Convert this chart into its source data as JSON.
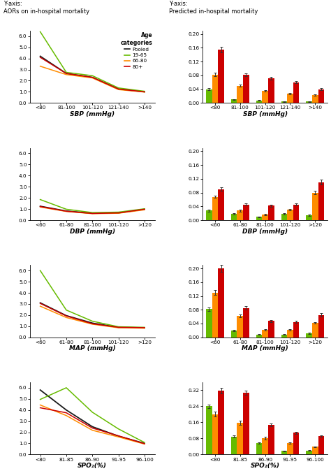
{
  "title_left": "Y-axis:\nAORs on in-hospital mortality",
  "title_right": "Y-axis:\nPredicted in-hospital mortality",
  "legend_title": "Age\ncategories",
  "legend_items": [
    "Pooled",
    "19-65",
    "66-80",
    "80+"
  ],
  "line_colors": [
    "#1a1a1a",
    "#66bb00",
    "#ff8c00",
    "#cc0000"
  ],
  "bar_colors": [
    "#66bb00",
    "#ff8c00",
    "#cc0000"
  ],
  "bar_labels": [
    "19-65",
    "66-80",
    "80+"
  ],
  "sbp": {
    "xlabel": "SBP (mmHg)",
    "xticks": [
      "<80",
      "81-100",
      "101-120",
      "121-140",
      ">140"
    ],
    "line_ylim": [
      0.0,
      6.5
    ],
    "line_yticks": [
      0.0,
      1.0,
      2.0,
      3.0,
      4.0,
      5.0,
      6.0
    ],
    "bar_ylim": [
      0.0,
      0.21
    ],
    "bar_yticks": [
      0.0,
      0.04,
      0.08,
      0.12,
      0.16,
      0.2
    ],
    "lines": {
      "Pooled": [
        4.2,
        2.65,
        2.3,
        1.25,
        1.0
      ],
      "19-65": [
        6.4,
        2.75,
        2.45,
        1.35,
        1.05
      ],
      "66-80": [
        3.3,
        2.55,
        2.25,
        1.2,
        0.98
      ],
      "80+": [
        4.1,
        2.65,
        2.3,
        1.25,
        1.0
      ]
    },
    "bars": {
      "19-65": [
        0.04,
        0.01,
        0.007,
        0.004,
        0.004
      ],
      "66-80": [
        0.082,
        0.05,
        0.036,
        0.027,
        0.022
      ],
      "80+": [
        0.155,
        0.082,
        0.072,
        0.06,
        0.04
      ]
    },
    "bar_errors": {
      "19-65": [
        0.003,
        0.001,
        0.001,
        0.001,
        0.001
      ],
      "66-80": [
        0.005,
        0.003,
        0.002,
        0.002,
        0.002
      ],
      "80+": [
        0.008,
        0.004,
        0.004,
        0.003,
        0.003
      ]
    }
  },
  "dbp": {
    "xlabel": "DBP (mmHg)",
    "xticks": [
      "<60",
      "61-80",
      "81-100",
      "101-120",
      ">120"
    ],
    "line_ylim": [
      0.0,
      6.5
    ],
    "line_yticks": [
      0.0,
      1.0,
      2.0,
      3.0,
      4.0,
      5.0,
      6.0
    ],
    "bar_ylim": [
      0.0,
      0.21
    ],
    "bar_yticks": [
      0.0,
      0.04,
      0.08,
      0.12,
      0.16,
      0.2
    ],
    "lines": {
      "Pooled": [
        1.25,
        0.82,
        0.62,
        0.65,
        0.98
      ],
      "19-65": [
        1.85,
        0.98,
        0.68,
        0.72,
        1.02
      ],
      "66-80": [
        1.18,
        0.78,
        0.58,
        0.62,
        0.93
      ],
      "80+": [
        1.22,
        0.8,
        0.6,
        0.65,
        0.98
      ]
    },
    "bars": {
      "19-65": [
        0.028,
        0.018,
        0.01,
        0.018,
        0.015
      ],
      "66-80": [
        0.068,
        0.028,
        0.016,
        0.03,
        0.08
      ],
      "80+": [
        0.09,
        0.045,
        0.042,
        0.045,
        0.11
      ]
    },
    "bar_errors": {
      "19-65": [
        0.003,
        0.002,
        0.001,
        0.002,
        0.002
      ],
      "66-80": [
        0.004,
        0.003,
        0.002,
        0.002,
        0.005
      ],
      "80+": [
        0.005,
        0.003,
        0.003,
        0.003,
        0.007
      ]
    }
  },
  "map": {
    "xlabel": "MAP (mmHg)",
    "xticks": [
      "<60",
      "61-80",
      "81-100",
      "101-120",
      ">120"
    ],
    "line_ylim": [
      0.0,
      6.5
    ],
    "line_yticks": [
      0.0,
      1.0,
      2.0,
      3.0,
      4.0,
      5.0,
      6.0
    ],
    "bar_ylim": [
      0.0,
      0.21
    ],
    "bar_yticks": [
      0.0,
      0.04,
      0.08,
      0.12,
      0.16,
      0.2
    ],
    "lines": {
      "Pooled": [
        3.1,
        1.95,
        1.28,
        0.9,
        0.85
      ],
      "19-65": [
        6.0,
        2.45,
        1.45,
        0.95,
        0.9
      ],
      "66-80": [
        2.8,
        1.78,
        1.18,
        0.86,
        0.82
      ],
      "80+": [
        3.05,
        1.92,
        1.22,
        0.9,
        0.87
      ]
    },
    "bars": {
      "19-65": [
        0.082,
        0.02,
        0.008,
        0.008,
        0.012
      ],
      "66-80": [
        0.13,
        0.062,
        0.022,
        0.022,
        0.042
      ],
      "80+": [
        0.2,
        0.085,
        0.048,
        0.045,
        0.065
      ]
    },
    "bar_errors": {
      "19-65": [
        0.005,
        0.002,
        0.001,
        0.001,
        0.002
      ],
      "66-80": [
        0.007,
        0.004,
        0.002,
        0.002,
        0.003
      ],
      "80+": [
        0.01,
        0.005,
        0.003,
        0.003,
        0.005
      ]
    }
  },
  "spo2": {
    "xlabel": "SPO₂(%)",
    "xticks": [
      "<80",
      "81-85",
      "86-90",
      "91-95",
      "96-100"
    ],
    "line_ylim": [
      0.0,
      6.5
    ],
    "line_yticks": [
      0.0,
      1.0,
      2.0,
      3.0,
      4.0,
      5.0,
      6.0
    ],
    "bar_ylim": [
      0.0,
      0.36
    ],
    "bar_yticks": [
      0.0,
      0.08,
      0.16,
      0.24,
      0.32
    ],
    "lines": {
      "Pooled": [
        5.8,
        4.0,
        2.5,
        1.65,
        1.0
      ],
      "19-65": [
        4.95,
        6.0,
        3.8,
        2.3,
        1.08
      ],
      "66-80": [
        4.45,
        3.5,
        2.18,
        1.58,
        0.94
      ],
      "80+": [
        4.2,
        3.75,
        2.38,
        1.68,
        0.97
      ]
    },
    "bars": {
      "19-65": [
        0.24,
        0.09,
        0.058,
        0.018,
        0.02
      ],
      "66-80": [
        0.2,
        0.158,
        0.082,
        0.058,
        0.038
      ],
      "80+": [
        0.318,
        0.308,
        0.148,
        0.108,
        0.092
      ]
    },
    "bar_errors": {
      "19-65": [
        0.01,
        0.006,
        0.004,
        0.002,
        0.002
      ],
      "66-80": [
        0.012,
        0.009,
        0.006,
        0.004,
        0.003
      ],
      "80+": [
        0.014,
        0.011,
        0.008,
        0.006,
        0.005
      ]
    }
  },
  "bg_color": "#ffffff"
}
